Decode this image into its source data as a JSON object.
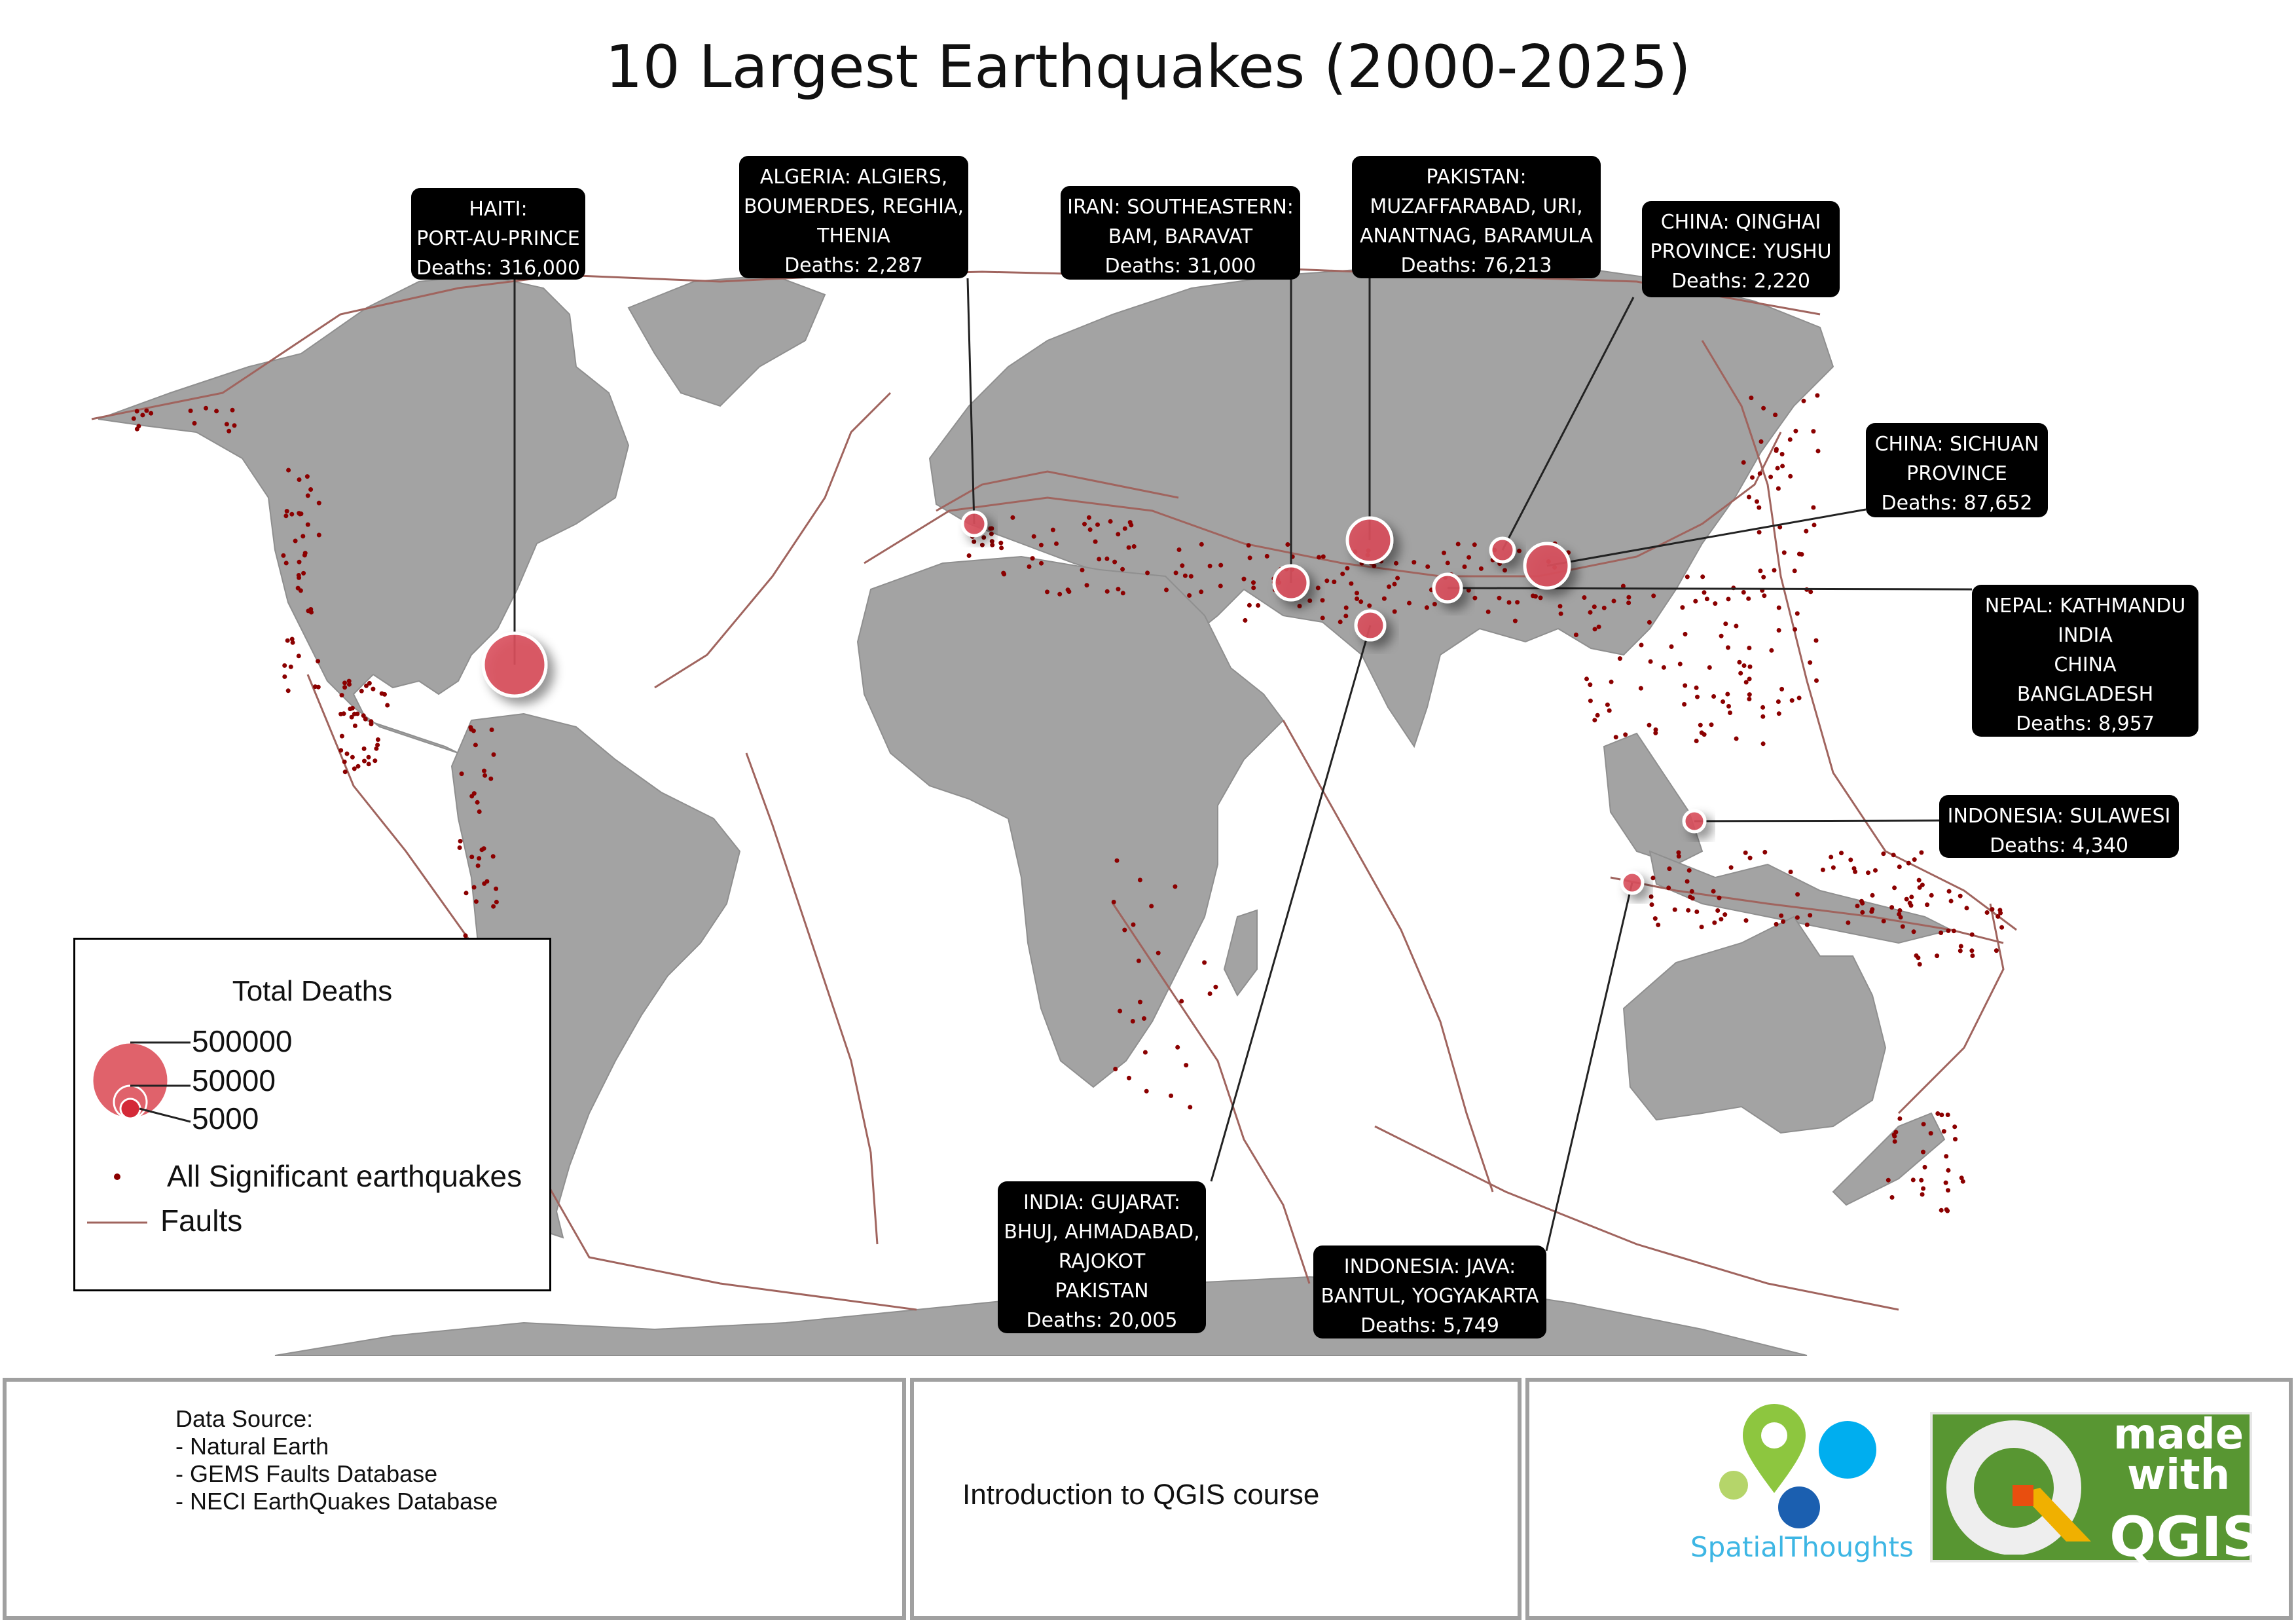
{
  "title": "10 Largest Earthquakes (2000-2025)",
  "colors": {
    "land": "#a3a3a3",
    "fault": "#a0645e",
    "quake_dot": "#8b0000",
    "bubble": "#d9505c",
    "callout_bg": "#000000",
    "qgis_green": "#589632",
    "spatial_blue": "#3db6e4"
  },
  "callouts": [
    {
      "id": "haiti",
      "lines": [
        "HAITI:",
        "PORT-AU-PRINCE",
        "Deaths: 316,000"
      ],
      "deaths": 316000
    },
    {
      "id": "algeria",
      "lines": [
        "ALGERIA:  ALGIERS,",
        "BOUMERDES, REGHIA,",
        "THENIA",
        "Deaths: 2,287"
      ],
      "deaths": 2287
    },
    {
      "id": "iran",
      "lines": [
        "IRAN:  SOUTHEASTERN:",
        "BAM, BARAVAT",
        "Deaths: 31,000"
      ],
      "deaths": 31000
    },
    {
      "id": "pakistan",
      "lines": [
        "PAKISTAN:",
        "MUZAFFARABAD, URI,",
        "ANANTNAG, BARAMULA",
        "Deaths: 76,213"
      ],
      "deaths": 76213
    },
    {
      "id": "china-qinghai",
      "lines": [
        "CHINA:  QINGHAI",
        "PROVINCE:  YUSHU",
        "Deaths: 2,220"
      ],
      "deaths": 2220
    },
    {
      "id": "china-sichuan",
      "lines": [
        "CHINA:  SICHUAN",
        "PROVINCE",
        "Deaths: 87,652"
      ],
      "deaths": 87652
    },
    {
      "id": "nepal",
      "lines": [
        "NEPAL:   KATHMANDU",
        "INDIA",
        "CHINA",
        "BANGLADESH",
        "Deaths: 8,957"
      ],
      "deaths": 8957
    },
    {
      "id": "indonesia-sulawesi",
      "lines": [
        "INDONESIA:  SULAWESI",
        "Deaths: 4,340"
      ],
      "deaths": 4340
    },
    {
      "id": "india-gujarat",
      "lines": [
        "INDIA:  GUJARAT:",
        "BHUJ, AHMADABAD,",
        "RAJOKOT",
        "PAKISTAN",
        "Deaths: 20,005"
      ],
      "deaths": 20005
    },
    {
      "id": "indonesia-java",
      "lines": [
        "INDONESIA:   JAVA:",
        "BANTUL, YOGYAKARTA",
        "Deaths: 5,749"
      ],
      "deaths": 5749
    }
  ],
  "legend": {
    "title": "Total Deaths",
    "sizes": [
      {
        "label": "500000",
        "value": 500000
      },
      {
        "label": "50000",
        "value": 50000
      },
      {
        "label": "5000",
        "value": 5000
      }
    ],
    "dots_label": "All Significant earthquakes",
    "faults_label": "Faults"
  },
  "footer": {
    "source_lines": [
      "Data Source:",
      "- Natural Earth",
      "- GEMS Faults Database",
      "- NECI EarthQuakes Database"
    ],
    "course": "Introduction to QGIS course",
    "spatialthoughts": "SpatialThoughts",
    "qgis_made": [
      "made",
      "with"
    ],
    "qgis_word": "QGIS"
  }
}
